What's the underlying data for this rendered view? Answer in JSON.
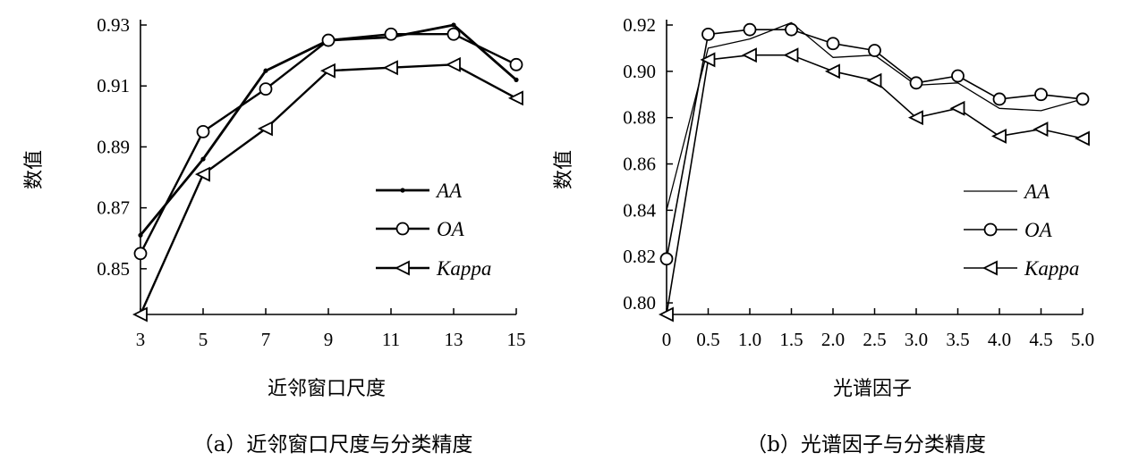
{
  "chart_data": [
    {
      "type": "line",
      "caption": "（a）近邻窗口尺度与分类精度",
      "xlabel": "近邻窗口尺度",
      "ylabel": "数值",
      "x": [
        3,
        5,
        7,
        9,
        11,
        13,
        15
      ],
      "x_tick_labels": [
        "3",
        "5",
        "7",
        "9",
        "11",
        "13",
        "15"
      ],
      "ylim": [
        0.835,
        0.93
      ],
      "y_ticks": [
        0.85,
        0.87,
        0.89,
        0.91,
        0.93
      ],
      "y_tick_labels": [
        "0.85",
        "0.87",
        "0.89",
        "0.91",
        "0.93"
      ],
      "legend_position": "right",
      "series": [
        {
          "name": "AA",
          "marker": "dot",
          "values": [
            0.861,
            0.886,
            0.915,
            0.925,
            0.926,
            0.93,
            0.912
          ]
        },
        {
          "name": "OA",
          "marker": "circle",
          "values": [
            0.855,
            0.895,
            0.909,
            0.925,
            0.927,
            0.927,
            0.917
          ]
        },
        {
          "name": "Kappa",
          "marker": "triangle-left",
          "values": [
            0.835,
            0.881,
            0.896,
            0.915,
            0.916,
            0.917,
            0.906
          ]
        }
      ]
    },
    {
      "type": "line",
      "caption": "（b）光谱因子与分类精度",
      "xlabel": "光谱因子",
      "ylabel": "数值",
      "x": [
        0,
        0.5,
        1.0,
        1.5,
        2.0,
        2.5,
        3.0,
        3.5,
        4.0,
        4.5,
        5.0
      ],
      "x_tick_labels": [
        "0",
        "0.5",
        "1.0",
        "1.5",
        "2.0",
        "2.5",
        "3.0",
        "3.5",
        "4.0",
        "4.5",
        "5.0"
      ],
      "ylim": [
        0.795,
        0.92
      ],
      "y_ticks": [
        0.8,
        0.82,
        0.84,
        0.86,
        0.88,
        0.9,
        0.92
      ],
      "y_tick_labels": [
        "0.80",
        "0.82",
        "0.84",
        "0.86",
        "0.88",
        "0.90",
        "0.92"
      ],
      "legend_position": "right",
      "series": [
        {
          "name": "AA",
          "marker": "none",
          "values": [
            0.84,
            0.91,
            0.914,
            0.921,
            0.906,
            0.907,
            0.894,
            0.895,
            0.884,
            0.883,
            0.888
          ]
        },
        {
          "name": "OA",
          "marker": "circle",
          "values": [
            0.819,
            0.916,
            0.918,
            0.918,
            0.912,
            0.909,
            0.895,
            0.898,
            0.888,
            0.89,
            0.888
          ]
        },
        {
          "name": "Kappa",
          "marker": "triangle-left",
          "values": [
            0.795,
            0.905,
            0.907,
            0.907,
            0.9,
            0.896,
            0.88,
            0.884,
            0.872,
            0.875,
            0.871
          ]
        }
      ]
    }
  ]
}
